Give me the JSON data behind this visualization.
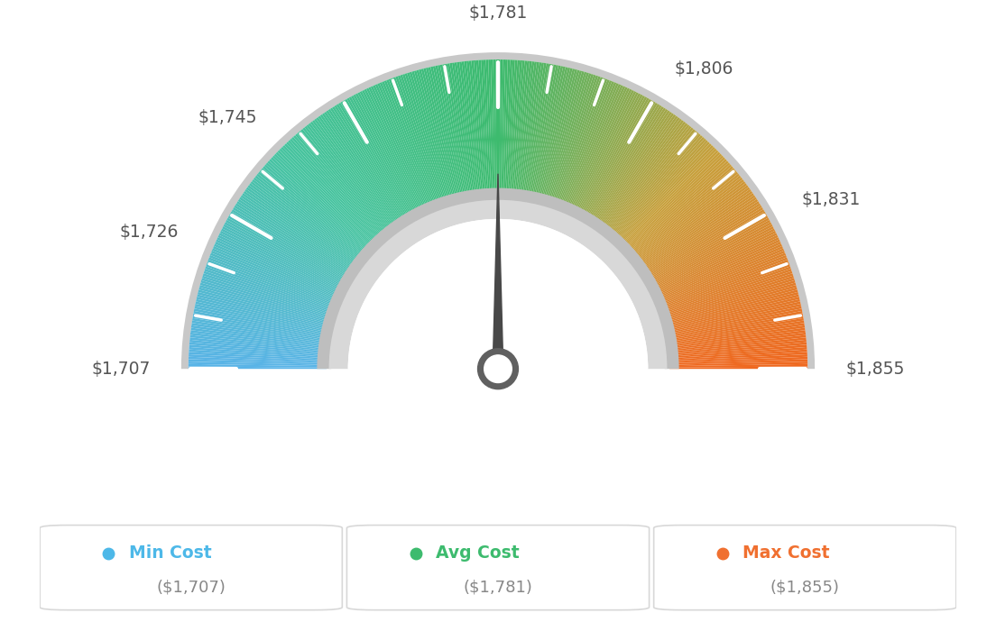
{
  "min_val": 1707,
  "max_val": 1855,
  "avg_val": 1781,
  "tick_labels": [
    "$1,707",
    "$1,726",
    "$1,745",
    "$1,781",
    "$1,806",
    "$1,831",
    "$1,855"
  ],
  "tick_values": [
    1707,
    1726,
    1745,
    1781,
    1806,
    1831,
    1855
  ],
  "legend_labels": [
    "Min Cost",
    "Avg Cost",
    "Max Cost"
  ],
  "legend_values": [
    "($1,707)",
    "($1,781)",
    "($1,855)"
  ],
  "legend_colors": [
    "#4db8e8",
    "#3dbb6e",
    "#f07030"
  ],
  "bg_color": "#ffffff",
  "color_stops": [
    [
      0.0,
      "#5ab4e8"
    ],
    [
      0.25,
      "#47c4a0"
    ],
    [
      0.5,
      "#3dbb6e"
    ],
    [
      0.75,
      "#c8a03c"
    ],
    [
      1.0,
      "#f06820"
    ]
  ],
  "needle_value": 1781,
  "outer_r": 1.3,
  "inner_r": 0.72,
  "outer_border_color": "#c8c8c8",
  "inner_band_color_outer": "#d0d0d0",
  "inner_band_color_inner": "#e8e8e8",
  "needle_color": "#484848",
  "pivot_outer_color": "#606060",
  "pivot_inner_color": "#ffffff",
  "label_color": "#555555",
  "legend_value_color": "#888888",
  "legend_border_color": "#d8d8d8"
}
